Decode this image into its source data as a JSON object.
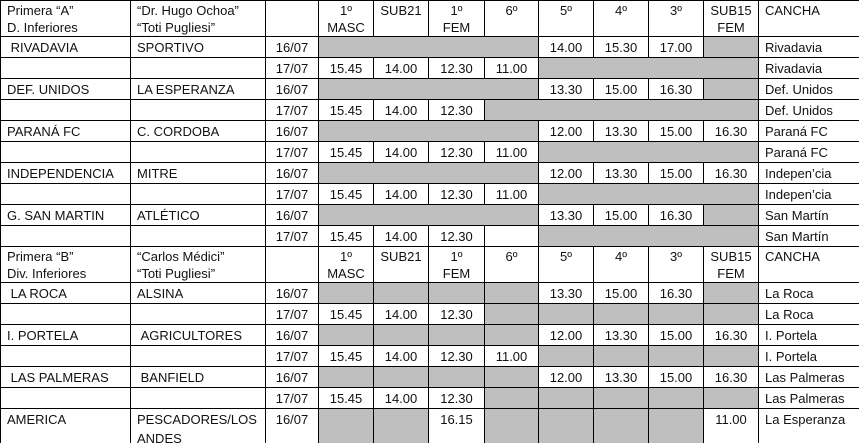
{
  "colors": {
    "shaded_cell": "#BFBFBF",
    "spellcheck_underline": "#FF0000",
    "border": "#000000"
  },
  "categories": [
    {
      "line1": "1º",
      "line2": "MASC"
    },
    {
      "line1": "SUB21",
      "line2": ""
    },
    {
      "line1": "1º",
      "line2": "FEM"
    },
    {
      "line1": "6º",
      "line2": ""
    },
    {
      "line1": "5º",
      "line2": ""
    },
    {
      "line1": "4º",
      "line2": ""
    },
    {
      "line1": "3º",
      "line2": ""
    },
    {
      "line1": "SUB15",
      "line2": "FEM"
    },
    {
      "line1": "CANCHA",
      "line2": ""
    }
  ],
  "sections": [
    {
      "division": [
        "Primera “A”",
        "D. Inferiores"
      ],
      "tournament_line1": "“Dr. Hugo Ochoa”",
      "tournament_flagged": "“Toti",
      "tournament_rest": " Pugliesi”",
      "rows": [
        {
          "home": " RIVADAVIA",
          "away": "SPORTIVO",
          "date": "16/07",
          "slots": [
            null,
            null,
            null,
            null,
            "14.00",
            "15.30",
            "17.00",
            null
          ],
          "venue": "Rivadavia"
        },
        {
          "home": "",
          "away": "",
          "date": "17/07",
          "slots": [
            "15.45",
            "14.00",
            "12.30",
            "11.00",
            null,
            null,
            null,
            null
          ],
          "venue": "Rivadavia"
        },
        {
          "home": "DEF. UNIDOS",
          "away": "LA ESPERANZA",
          "date": "16/07",
          "slots": [
            null,
            null,
            null,
            null,
            "13.30",
            "15.00",
            "16.30",
            null
          ],
          "venue": "Def. Unidos"
        },
        {
          "home": "",
          "away": "",
          "date": "17/07",
          "slots": [
            "15.45",
            "14.00",
            "12.30",
            null,
            null,
            null,
            null,
            null
          ],
          "venue": "Def. Unidos"
        },
        {
          "home": "PARANÁ FC",
          "away": "C. CORDOBA",
          "date": "16/07",
          "slots": [
            null,
            null,
            null,
            null,
            "12.00",
            "13.30",
            "15.00",
            "16.30"
          ],
          "venue": "Paraná FC"
        },
        {
          "home": "",
          "away": "",
          "date": "17/07",
          "slots": [
            "15.45",
            "14.00",
            "12.30",
            "11.00",
            null,
            null,
            null,
            null
          ],
          "venue": "Paraná FC"
        },
        {
          "home": "INDEPENDENCIA",
          "away": "MITRE",
          "date": "16/07",
          "slots": [
            null,
            null,
            null,
            null,
            "12.00",
            "13.30",
            "15.00",
            "16.30"
          ],
          "venue": "Indepen’cia"
        },
        {
          "home": "",
          "away": "",
          "date": "17/07",
          "slots": [
            "15.45",
            "14.00",
            "12.30",
            "11.00",
            null,
            null,
            null,
            null
          ],
          "venue": "Indepen’cia"
        },
        {
          "home": "G. SAN MARTIN",
          "away": "ATLÉTICO",
          "date": "16/07",
          "slots": [
            null,
            null,
            null,
            null,
            "13.30",
            "15.00",
            "16.30",
            null
          ],
          "venue": "San Martín"
        },
        {
          "home": "",
          "away": "",
          "date": "17/07",
          "slots": [
            "15.45",
            "14.00",
            "12.30",
            "",
            null,
            null,
            null,
            null
          ],
          "venue": "San Martín"
        }
      ]
    },
    {
      "division": [
        "Primera “B”",
        "Div. Inferiores"
      ],
      "tournament_line1": "“Carlos Médici”",
      "tournament_flagged": "“Toti",
      "tournament_rest": " Pugliesi”",
      "rows": [
        {
          "home": " LA ROCA",
          "away": "ALSINA",
          "date": "16/07",
          "slots": [
            null,
            null,
            null,
            null,
            "13.30",
            "15.00",
            "16.30",
            null
          ],
          "venue": "La Roca"
        },
        {
          "home": "",
          "away": "",
          "date": "17/07",
          "slots": [
            "15.45",
            "14.00",
            "12.30",
            null,
            null,
            null,
            null,
            null
          ],
          "venue": "La Roca"
        },
        {
          "home": "I. PORTELA",
          "away": " AGRICULTORES",
          "date": "16/07",
          "slots": [
            null,
            null,
            null,
            null,
            "12.00",
            "13.30",
            "15.00",
            "16.30"
          ],
          "venue": "I. Portela"
        },
        {
          "home": "",
          "away": "",
          "date": "17/07",
          "slots": [
            "15.45",
            "14.00",
            "12.30",
            "11.00",
            null,
            null,
            null,
            null
          ],
          "venue": "I. Portela"
        },
        {
          "home": " LAS PALMERAS",
          "away": " BANFIELD",
          "date": "16/07",
          "slots": [
            null,
            null,
            null,
            null,
            "12.00",
            "13.30",
            "15.00",
            "16.30"
          ],
          "venue": "Las Palmeras"
        },
        {
          "home": "",
          "away": "",
          "date": "17/07",
          "slots": [
            "15.45",
            "14.00",
            "12.30",
            null,
            null,
            null,
            null,
            null
          ],
          "venue": "Las Palmeras"
        },
        {
          "home": "AMERICA",
          "away": "PESCADORES/LOS ANDES",
          "date": "16/07",
          "slots": [
            null,
            null,
            "16.15",
            null,
            null,
            null,
            null,
            "11.00"
          ],
          "venue": "La Esperanza"
        }
      ]
    }
  ]
}
